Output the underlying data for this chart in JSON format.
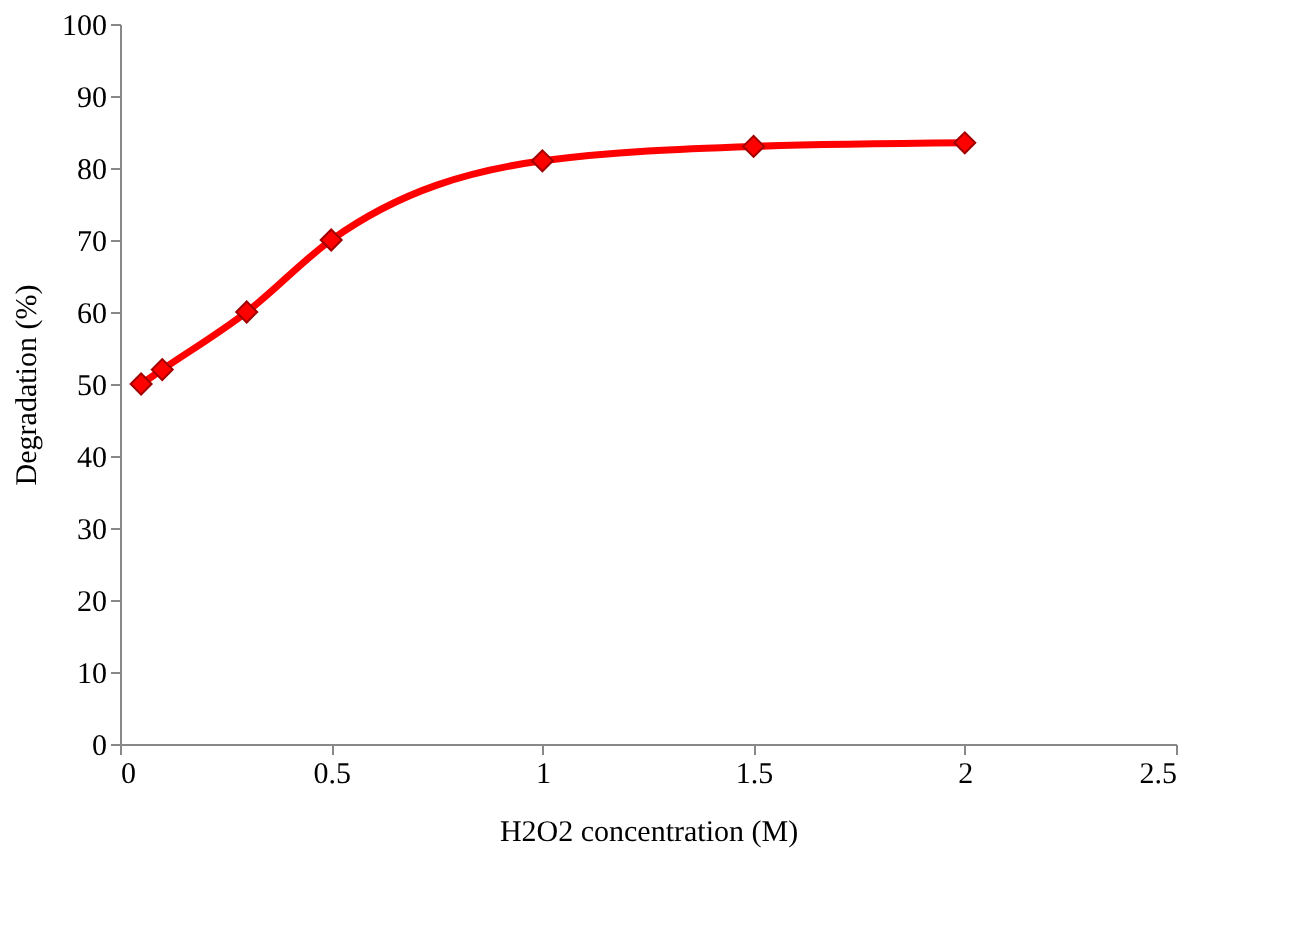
{
  "chart_data": {
    "type": "line",
    "xlabel": "H2O2 concentration (M)",
    "ylabel": "Degradation (%)",
    "x": [
      0.05,
      0.1,
      0.3,
      0.5,
      1,
      1.5,
      2
    ],
    "series": [
      {
        "color": "#ff0000",
        "values": [
          50,
          52,
          60,
          70,
          81,
          83,
          83.5
        ]
      }
    ],
    "xlim": [
      0,
      2.5
    ],
    "xticks": [
      0,
      0.5,
      1,
      1.5,
      2,
      2.5
    ],
    "ylim": [
      0,
      100
    ],
    "yticks": [
      0,
      10,
      20,
      30,
      40,
      50,
      60,
      70,
      80,
      90,
      100
    ],
    "grid": false,
    "marker": "diamond",
    "line_style": "solid"
  }
}
